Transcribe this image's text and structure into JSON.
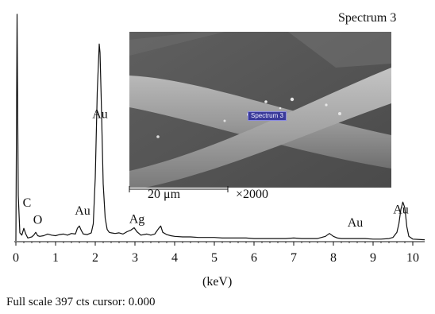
{
  "chart_data": {
    "type": "line",
    "title": "Spectrum 3",
    "xlabel": "(keV)",
    "xlim": [
      0,
      10.3
    ],
    "ylim": [
      0,
      397
    ],
    "x_ticks": [
      "0",
      "1",
      "2",
      "3",
      "4",
      "5",
      "6",
      "7",
      "8",
      "9",
      "10"
    ],
    "footer": "Full scale 397 cts cursor: 0.000",
    "series": [
      {
        "values_x": [
          0.0,
          0.03,
          0.06,
          0.1,
          0.15,
          0.2,
          0.25,
          0.3,
          0.35,
          0.4,
          0.45,
          0.5,
          0.55,
          0.6,
          0.7,
          0.8,
          0.9,
          1.0,
          1.1,
          1.2,
          1.3,
          1.4,
          1.5,
          1.55,
          1.6,
          1.65,
          1.7,
          1.8,
          1.9,
          1.95,
          2.0,
          2.05,
          2.1,
          2.12,
          2.15,
          2.2,
          2.25,
          2.3,
          2.35,
          2.4,
          2.5,
          2.6,
          2.7,
          2.8,
          2.9,
          2.98,
          3.05,
          3.15,
          3.3,
          3.4,
          3.5,
          3.6,
          3.65,
          3.7,
          3.8,
          3.9,
          4.0,
          4.2,
          4.4,
          4.6,
          4.8,
          5.0,
          5.2,
          5.4,
          5.6,
          5.8,
          6.0,
          6.2,
          6.4,
          6.6,
          6.8,
          7.0,
          7.2,
          7.4,
          7.6,
          7.8,
          7.9,
          8.0,
          8.1,
          8.2,
          8.4,
          8.6,
          8.8,
          9.0,
          9.2,
          9.4,
          9.5,
          9.6,
          9.65,
          9.7,
          9.75,
          9.8,
          9.85,
          9.9,
          10.0,
          10.3
        ],
        "values_y": [
          0,
          397,
          80,
          14,
          10,
          22,
          12,
          5,
          6,
          7,
          10,
          15,
          9,
          8,
          9,
          12,
          10,
          9,
          11,
          12,
          10,
          13,
          12,
          22,
          26,
          18,
          12,
          11,
          14,
          30,
          110,
          260,
          345,
          330,
          250,
          100,
          40,
          20,
          15,
          14,
          13,
          14,
          12,
          16,
          19,
          23,
          16,
          10,
          12,
          10,
          12,
          22,
          26,
          15,
          11,
          9,
          8,
          7,
          7,
          6,
          6,
          6,
          5,
          5,
          5,
          5,
          4,
          4,
          4,
          4,
          4,
          5,
          4,
          4,
          4,
          8,
          13,
          8,
          5,
          4,
          4,
          4,
          4,
          3,
          3,
          4,
          6,
          15,
          30,
          55,
          68,
          58,
          25,
          8,
          3,
          2
        ]
      }
    ],
    "peak_labels": [
      {
        "text": "C",
        "x": 0.28,
        "y": 60
      },
      {
        "text": "O",
        "x": 0.55,
        "y": 30
      },
      {
        "text": "Au",
        "x": 1.68,
        "y": 46
      },
      {
        "text": "Au",
        "x": 2.12,
        "y": 215
      },
      {
        "text": "Ag",
        "x": 3.05,
        "y": 31
      },
      {
        "text": "Au",
        "x": 8.55,
        "y": 25
      },
      {
        "text": "Au",
        "x": 9.7,
        "y": 48
      }
    ]
  },
  "sem_image": {
    "spectrum_label": "Spectrum 3",
    "scale_bar": "20 μm",
    "magnification": "×2000"
  }
}
